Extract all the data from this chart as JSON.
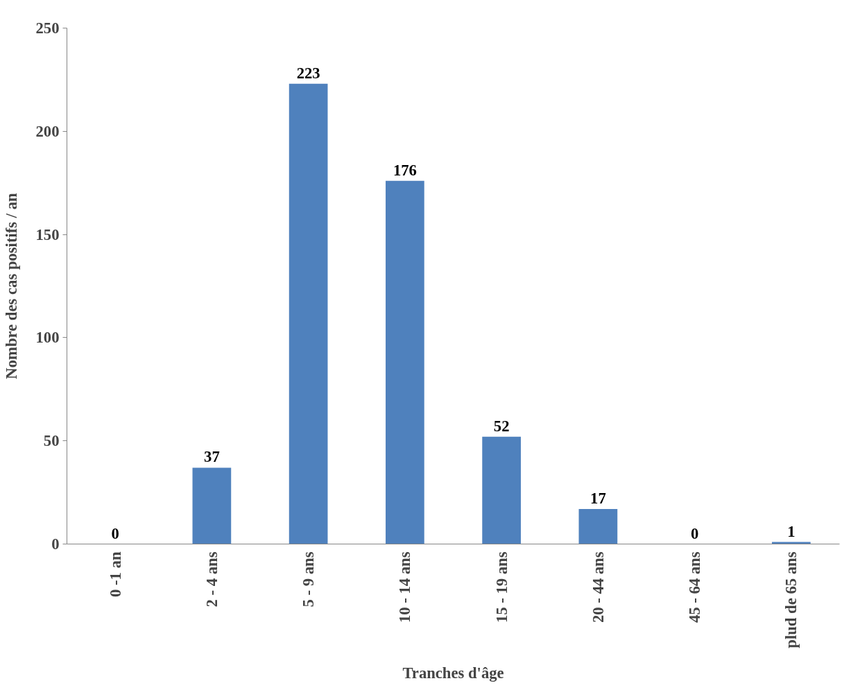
{
  "chart_data": {
    "type": "bar",
    "xlabel": "Tranches d'âge",
    "ylabel": "Nombre des cas positifs / an",
    "categories": [
      "0 -1 an",
      "2 - 4 ans",
      "5 - 9 ans",
      "10 - 14 ans",
      "15 - 19 ans",
      "20 - 44 ans",
      "45 - 64 ans",
      "plud de 65 ans"
    ],
    "values": [
      0,
      37,
      223,
      176,
      52,
      17,
      0,
      1
    ],
    "color": "#4f81bd",
    "ylim": [
      0,
      250
    ],
    "yticks": [
      0,
      50,
      100,
      150,
      200,
      250
    ],
    "data_labels": true,
    "grid": false
  }
}
